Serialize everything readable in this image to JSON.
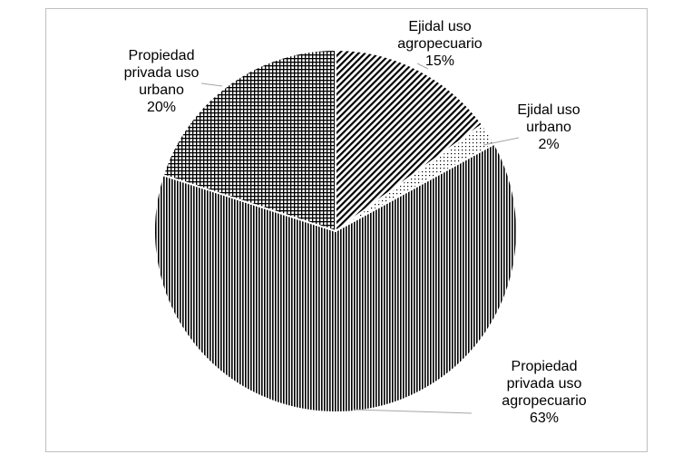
{
  "chart_data": {
    "type": "pie",
    "title": "",
    "slices": [
      {
        "label": [
          "Ejidal uso",
          "agropecuario",
          "15%"
        ],
        "name": "Ejidal uso agropecuario",
        "value": 15,
        "pattern": "diagonal"
      },
      {
        "label": [
          "Ejidal uso",
          "urbano",
          "2%"
        ],
        "name": "Ejidal uso urbano",
        "value": 2,
        "pattern": "dots"
      },
      {
        "label": [
          "Propiedad",
          "privada uso",
          "agropecuario",
          "63%"
        ],
        "name": "Propiedad privada uso agropecuario",
        "value": 63,
        "pattern": "vertical"
      },
      {
        "label": [
          "Propiedad",
          "privada uso",
          "urbano",
          "20%"
        ],
        "name": "Propiedad privada uso urbano",
        "value": 20,
        "pattern": "grid"
      }
    ],
    "start_angle": "12 o'clock",
    "direction": "clockwise",
    "legend": "none",
    "colors": {
      "ink": "#000000",
      "background": "#ffffff",
      "border": "#bfbfbf",
      "leader": "#a6a6a6"
    }
  }
}
